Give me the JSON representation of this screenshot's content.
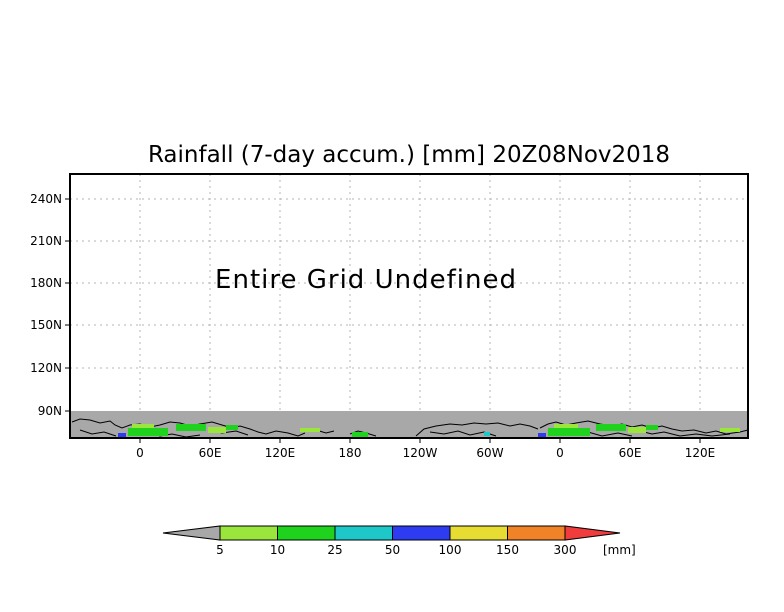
{
  "title": "Rainfall (7-day accum.) [mm] 20Z08Nov2018",
  "message": "Entire Grid Undefined",
  "map": {
    "y_ticks": [
      "240N",
      "210N",
      "180N",
      "150N",
      "120N",
      "90N"
    ],
    "x_ticks": [
      "0",
      "60E",
      "120E",
      "180",
      "120W",
      "60W",
      "0",
      "60E",
      "120E"
    ],
    "land_color": "#000000",
    "undefined_fill_color": "#a8a8a8"
  },
  "colorbar": {
    "unit": "[mm]",
    "labels": [
      "5",
      "10",
      "25",
      "50",
      "100",
      "150",
      "300"
    ],
    "colors": [
      "#a8a8a8",
      "#9be63c",
      "#1ed21e",
      "#1ec8c8",
      "#2d3cf0",
      "#e6dc32",
      "#f08228",
      "#f03c3c"
    ]
  }
}
